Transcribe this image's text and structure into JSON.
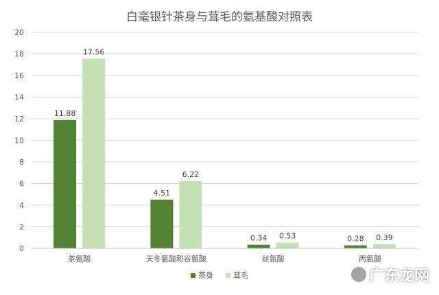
{
  "colors": {
    "series1": "#548235",
    "series2": "#c5e0b4",
    "grid": "#d9d9d9",
    "axis_text": "#595959"
  },
  "watermark": {
    "text": "广东龙网",
    "icon": "speech-bubble-icon"
  },
  "chart_data": {
    "type": "bar",
    "title": "白毫银针茶身与茸毛的氨基酸对照表",
    "categories": [
      "茶氨酸",
      "天冬氨酸和谷氨酸",
      "丝氨酸",
      "丙氨酸"
    ],
    "series": [
      {
        "name": "茶身",
        "values": [
          11.88,
          4.51,
          0.34,
          0.28
        ],
        "labels": [
          "11.88",
          "4.51",
          "0.34",
          "0.28"
        ]
      },
      {
        "name": "茸毛",
        "values": [
          17.56,
          6.22,
          0.53,
          0.39
        ],
        "labels": [
          "17.56",
          "6.22",
          "0.53",
          "0.39"
        ]
      }
    ],
    "xlabel": "",
    "ylabel": "",
    "ylim": [
      0,
      20
    ],
    "yticks": [
      "0",
      "2",
      "4",
      "6",
      "8",
      "10",
      "12",
      "14",
      "16",
      "18",
      "20"
    ],
    "grid": true,
    "legend": "bottom"
  }
}
